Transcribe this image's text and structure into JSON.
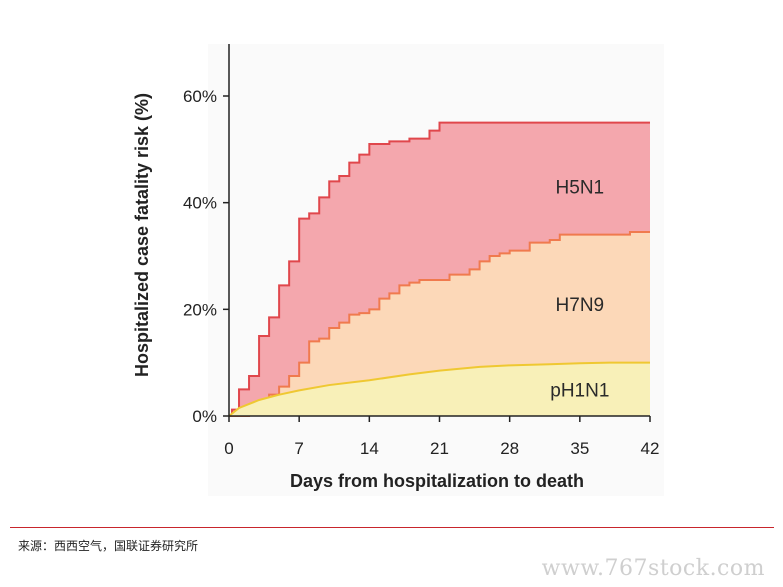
{
  "chart_data": {
    "type": "area",
    "xlabel": "Days from hospitalization to death",
    "ylabel": "Hospitalized case fatality risk (%)",
    "xlim": [
      0,
      42
    ],
    "ylim": [
      0,
      60
    ],
    "x_ticks": [
      0,
      7,
      14,
      21,
      28,
      35,
      42
    ],
    "x_tick_labels": [
      "0",
      "7",
      "14",
      "21",
      "28",
      "35",
      "42"
    ],
    "y_ticks": [
      0,
      20,
      40,
      60
    ],
    "y_tick_labels": [
      "0%",
      "20%",
      "40%",
      "60%"
    ],
    "legend": "none",
    "grid": false,
    "series": [
      {
        "name": "H5N1",
        "color": "#f4a7ad",
        "line_color": "#e0474c",
        "step": true,
        "points": [
          [
            0,
            0
          ],
          [
            0.3,
            1.2
          ],
          [
            1,
            5
          ],
          [
            2,
            7.5
          ],
          [
            3,
            15
          ],
          [
            4,
            18.5
          ],
          [
            5,
            24.5
          ],
          [
            6,
            29
          ],
          [
            7,
            37
          ],
          [
            8,
            38
          ],
          [
            9,
            41
          ],
          [
            10,
            44
          ],
          [
            11,
            45
          ],
          [
            12,
            47.5
          ],
          [
            13,
            49
          ],
          [
            14,
            51
          ],
          [
            16,
            51.5
          ],
          [
            18,
            52
          ],
          [
            20,
            53.5
          ],
          [
            21,
            55
          ],
          [
            42,
            55
          ]
        ]
      },
      {
        "name": "H7N9",
        "color": "#fcd8b8",
        "line_color": "#f07a4e",
        "step": true,
        "points": [
          [
            0,
            0
          ],
          [
            2,
            1.5
          ],
          [
            3,
            2.5
          ],
          [
            4,
            4
          ],
          [
            5,
            5.5
          ],
          [
            6,
            7.5
          ],
          [
            7,
            10
          ],
          [
            8,
            14
          ],
          [
            9,
            14.5
          ],
          [
            10,
            16.5
          ],
          [
            11,
            17.5
          ],
          [
            12,
            19
          ],
          [
            13,
            19.3
          ],
          [
            14,
            20
          ],
          [
            15,
            22
          ],
          [
            16,
            23
          ],
          [
            17,
            24.5
          ],
          [
            18,
            25
          ],
          [
            19,
            25.5
          ],
          [
            22,
            26.5
          ],
          [
            24,
            27.5
          ],
          [
            25,
            29
          ],
          [
            26,
            30
          ],
          [
            27,
            30.5
          ],
          [
            28,
            31
          ],
          [
            30,
            32.5
          ],
          [
            32,
            33
          ],
          [
            33,
            34
          ],
          [
            40,
            34.5
          ],
          [
            42,
            34.5
          ]
        ]
      },
      {
        "name": "pH1N1",
        "color": "#f8f0b8",
        "line_color": "#efc832",
        "step": false,
        "points": [
          [
            0,
            0
          ],
          [
            1,
            1.5
          ],
          [
            3,
            3
          ],
          [
            5,
            4
          ],
          [
            7,
            4.8
          ],
          [
            10,
            5.8
          ],
          [
            14,
            6.7
          ],
          [
            18,
            7.8
          ],
          [
            21,
            8.5
          ],
          [
            25,
            9.2
          ],
          [
            28,
            9.5
          ],
          [
            32,
            9.7
          ],
          [
            35,
            9.9
          ],
          [
            38,
            10
          ],
          [
            42,
            10
          ]
        ]
      }
    ],
    "annotations": [
      {
        "text": "H5N1",
        "x": 35,
        "y": 43
      },
      {
        "text": "H7N9",
        "x": 35,
        "y": 21
      },
      {
        "text": "pH1N1",
        "x": 35,
        "y": 5
      }
    ]
  },
  "footer": {
    "source": "来源：西西空气，国联证券研究所",
    "watermark": "www.767stock.com"
  }
}
